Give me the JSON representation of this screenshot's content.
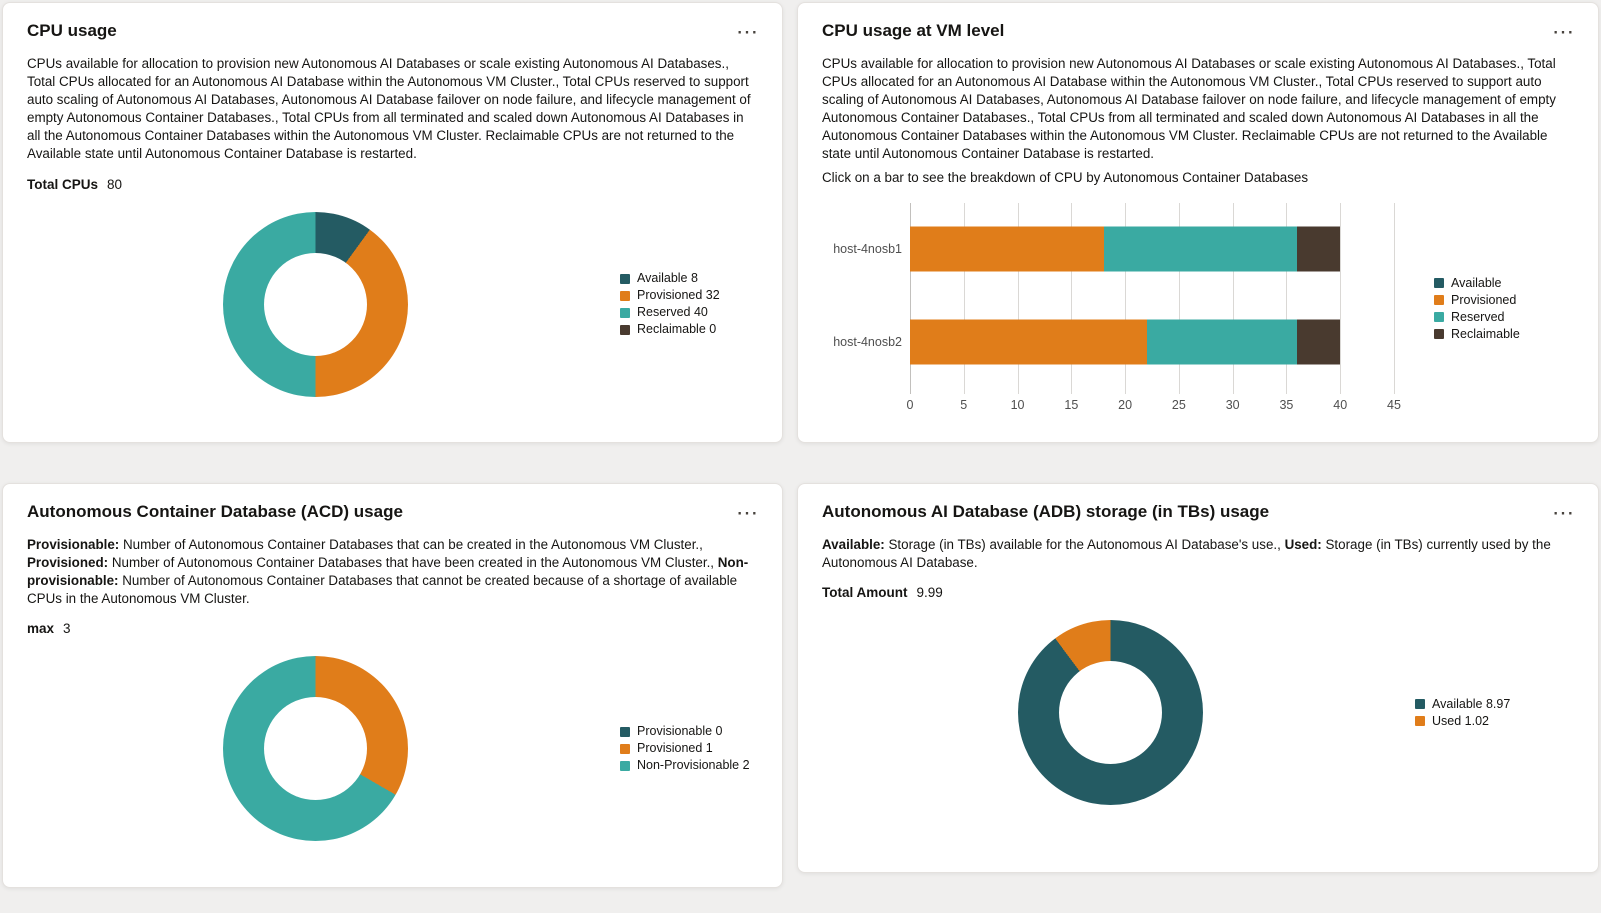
{
  "icons": {
    "overflow_menu": "⋯"
  },
  "colors": {
    "available": "#245b63",
    "provisioned": "#e07d1a",
    "reserved": "#3aaaa2",
    "reclaimable": "#493a2f"
  },
  "cards": {
    "cpu_usage": {
      "title": "CPU usage",
      "description": "CPUs available for allocation to provision new Autonomous AI Databases or scale existing Autonomous AI Databases., Total CPUs allocated for an Autonomous AI Database within the Autonomous VM Cluster., Total CPUs reserved to support auto scaling of Autonomous AI Databases, Autonomous AI Database failover on node failure, and lifecycle management of empty Autonomous Container Databases., Total CPUs from all terminated and scaled down Autonomous AI Databases in all the Autonomous Container Databases within the Autonomous VM Cluster. Reclaimable CPUs are not returned to the Available state until Autonomous Container Database is restarted.",
      "stat": {
        "label": "Total CPUs",
        "value": "80"
      }
    },
    "cpu_usage_vm": {
      "title": "CPU usage at VM level",
      "description": "CPUs available for allocation to provision new Autonomous AI Databases or scale existing Autonomous AI Databases., Total CPUs allocated for an Autonomous AI Database within the Autonomous VM Cluster., Total CPUs reserved to support auto scaling of Autonomous AI Databases, Autonomous AI Database failover on node failure, and lifecycle management of empty Autonomous Container Databases., Total CPUs from all terminated and scaled down Autonomous AI Databases in all the Autonomous Container Databases within the Autonomous VM Cluster. Reclaimable CPUs are not returned to the Available state until Autonomous Container Database is restarted.",
      "hint": "Click on a bar to see the breakdown of CPU by Autonomous Container Databases"
    },
    "acd_usage": {
      "title": "Autonomous Container Database (ACD) usage",
      "description_rich": [
        {
          "bold": true,
          "text": "Provisionable:"
        },
        {
          "bold": false,
          "text": " Number of Autonomous Container Databases that can be created in the Autonomous VM Cluster., "
        },
        {
          "bold": true,
          "text": "Provisioned:"
        },
        {
          "bold": false,
          "text": " Number of Autonomous Container Databases that have been created in the Autonomous VM Cluster., "
        },
        {
          "bold": true,
          "text": "Non-provisionable:"
        },
        {
          "bold": false,
          "text": " Number of Autonomous Container Databases that cannot be created because of a shortage of available CPUs in the Autonomous VM Cluster."
        }
      ],
      "stat": {
        "label": "max",
        "value": "3"
      }
    },
    "adb_storage": {
      "title": "Autonomous AI Database (ADB) storage (in TBs) usage",
      "description_rich": [
        {
          "bold": true,
          "text": "Available:"
        },
        {
          "bold": false,
          "text": " Storage (in TBs) available for the Autonomous AI Database's use., "
        },
        {
          "bold": true,
          "text": "Used:"
        },
        {
          "bold": false,
          "text": " Storage (in TBs) currently used by the Autonomous AI Database."
        }
      ],
      "stat": {
        "label": "Total Amount",
        "value": "9.99"
      }
    }
  },
  "chart_data": [
    {
      "type": "pie",
      "title": "CPU usage",
      "total": 80,
      "legend_values": true,
      "legend_position": "right",
      "slices": [
        {
          "label": "Available",
          "value": 8,
          "color": "#245b63"
        },
        {
          "label": "Provisioned",
          "value": 32,
          "color": "#e07d1a"
        },
        {
          "label": "Reserved",
          "value": 40,
          "color": "#3aaaa2"
        },
        {
          "label": "Reclaimable",
          "value": 0,
          "color": "#493a2f"
        }
      ]
    },
    {
      "type": "bar",
      "title": "CPU usage at VM level",
      "orientation": "horizontal",
      "stacked": true,
      "grid": true,
      "legend_position": "right",
      "categories": [
        "host-4nosb1",
        "host-4nosb2"
      ],
      "series": [
        {
          "name": "Available",
          "values": [
            0,
            0
          ],
          "color": "#245b63"
        },
        {
          "name": "Provisioned",
          "values": [
            18,
            22
          ],
          "color": "#e07d1a"
        },
        {
          "name": "Reserved",
          "values": [
            18,
            14
          ],
          "color": "#3aaaa2"
        },
        {
          "name": "Reclaimable",
          "values": [
            4,
            4
          ],
          "color": "#493a2f"
        }
      ],
      "x_ticks": [
        0,
        5,
        10,
        15,
        20,
        25,
        30,
        35,
        40,
        45
      ],
      "xlim": [
        0,
        45
      ]
    },
    {
      "type": "pie",
      "title": "Autonomous Container Database (ACD) usage",
      "total": 3,
      "legend_values": true,
      "legend_position": "right",
      "slices": [
        {
          "label": "Provisionable",
          "value": 0,
          "color": "#245b63"
        },
        {
          "label": "Provisioned",
          "value": 1,
          "color": "#e07d1a"
        },
        {
          "label": "Non-Provisionable",
          "value": 2,
          "color": "#3aaaa2"
        }
      ]
    },
    {
      "type": "pie",
      "title": "Autonomous AI Database (ADB) storage (in TBs) usage",
      "total": 9.99,
      "legend_values": true,
      "legend_position": "right",
      "slices": [
        {
          "label": "Available",
          "value": 8.97,
          "color": "#245b63"
        },
        {
          "label": "Used",
          "value": 1.02,
          "color": "#e07d1a"
        }
      ]
    }
  ]
}
